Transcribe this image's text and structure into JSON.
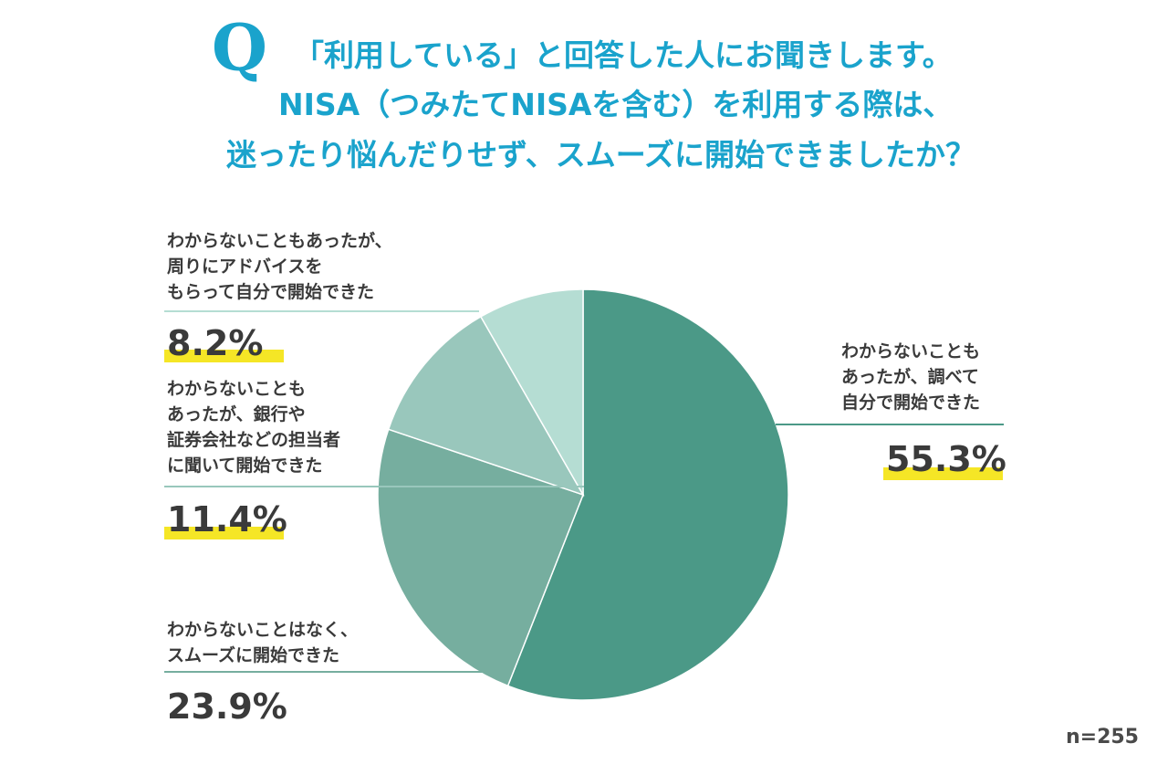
{
  "title": {
    "q_mark": "Q",
    "line1": "「利用している」と回答した人にお聞きします。",
    "line2": "NISA（つみたてNISAを含む）を利用する際は、",
    "line3": "迷ったり悩んだりせず、スムーズに開始できましたか？"
  },
  "sample_size": "n=255",
  "colors": {
    "title": "#1aa3cc",
    "highlight": "#f5e626",
    "slices": [
      "#4b9987",
      "#76ae9f",
      "#99c7bc",
      "#b5ddd3"
    ]
  },
  "chart_data": {
    "type": "pie",
    "start": "12 o'clock, clockwise",
    "slices": [
      {
        "label": "わからないことも\nあったが、調べて\n自分で開始できた",
        "value": 55.3,
        "display": "55.3%"
      },
      {
        "label": "わからないことはなく、\nスムーズに開始できた",
        "value": 23.9,
        "display": "23.9%"
      },
      {
        "label": "わからないことも\nあったが、銀行や\n証券会社などの担当者\nに聞いて開始できた",
        "value": 11.4,
        "display": "11.4%"
      },
      {
        "label": "わからないこともあったが、\n周りにアドバイスを\nもらって自分で開始できた",
        "value": 8.2,
        "display": "8.2%"
      }
    ]
  }
}
